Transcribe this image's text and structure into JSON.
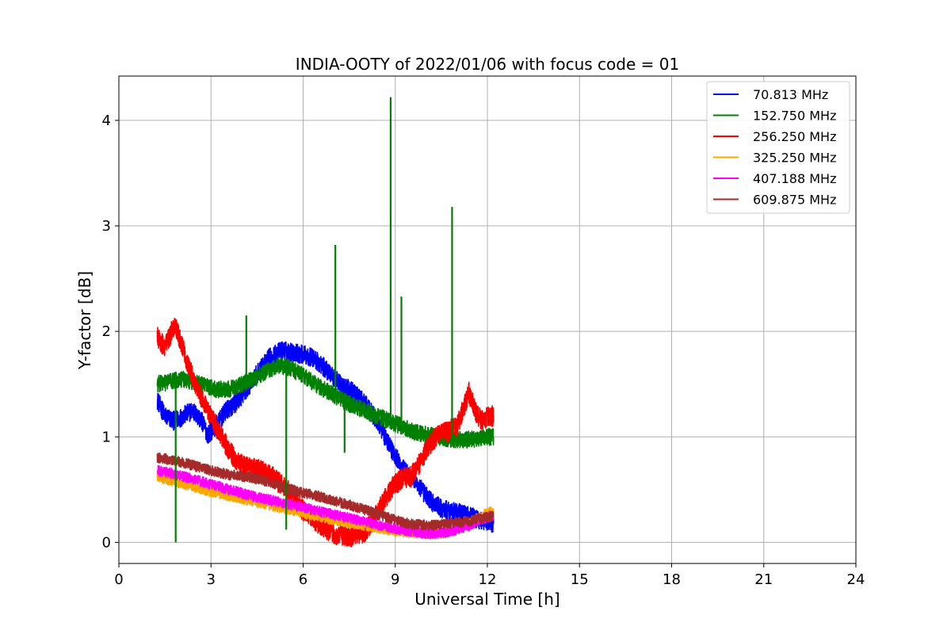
{
  "chart_data": {
    "type": "line",
    "title": "INDIA-OOTY of 2022/01/06 with focus code = 01",
    "xlabel": "Universal Time [h]",
    "ylabel": "Y-factor [dB]",
    "xlim": [
      0,
      24
    ],
    "ylim": [
      -0.2,
      4.42
    ],
    "xticks": [
      0,
      3,
      6,
      9,
      12,
      15,
      18,
      21,
      24
    ],
    "yticks": [
      0,
      1,
      2,
      3,
      4
    ],
    "grid": true,
    "legend_position": "top-right",
    "series": [
      {
        "name": " 70.813 MHz",
        "color": "#0000ff",
        "x": [
          1.25,
          1.5,
          1.8,
          2.1,
          2.4,
          2.7,
          2.9,
          3.2,
          3.5,
          3.8,
          4.1,
          4.5,
          4.9,
          5.3,
          5.7,
          6.0,
          6.3,
          6.6,
          6.9,
          7.2,
          7.5,
          7.8,
          8.1,
          8.4,
          8.7,
          9.0,
          9.3,
          9.6,
          9.9,
          10.2,
          10.5,
          10.8,
          11.1,
          11.4,
          11.7,
          12.0,
          12.2
        ],
        "y": [
          1.35,
          1.2,
          1.15,
          1.2,
          1.25,
          1.15,
          1.02,
          1.12,
          1.25,
          1.32,
          1.42,
          1.6,
          1.75,
          1.82,
          1.8,
          1.78,
          1.75,
          1.68,
          1.6,
          1.5,
          1.45,
          1.38,
          1.28,
          1.15,
          0.98,
          0.82,
          0.68,
          0.6,
          0.48,
          0.38,
          0.32,
          0.3,
          0.28,
          0.25,
          0.22,
          0.2,
          0.18
        ]
      },
      {
        "name": "152.750 MHz",
        "color": "#008000",
        "x": [
          1.25,
          1.6,
          2.0,
          2.4,
          2.8,
          3.2,
          3.6,
          4.0,
          4.4,
          4.8,
          5.2,
          5.6,
          6.0,
          6.4,
          6.8,
          7.2,
          7.6,
          8.0,
          8.4,
          8.8,
          9.2,
          9.6,
          10.0,
          10.4,
          10.8,
          11.2,
          11.6,
          12.0,
          12.2
        ],
        "y": [
          1.5,
          1.52,
          1.55,
          1.52,
          1.48,
          1.45,
          1.45,
          1.5,
          1.55,
          1.62,
          1.68,
          1.65,
          1.58,
          1.5,
          1.43,
          1.36,
          1.3,
          1.25,
          1.2,
          1.15,
          1.1,
          1.05,
          1.02,
          1.0,
          0.98,
          0.97,
          0.98,
          1.0,
          1.0
        ]
      },
      {
        "name": "256.250 MHz",
        "color": "#ff0000",
        "x": [
          1.25,
          1.5,
          1.75,
          1.85,
          2.0,
          2.3,
          2.6,
          2.9,
          3.2,
          3.5,
          3.8,
          4.1,
          4.5,
          5.0,
          5.5,
          6.0,
          6.5,
          7.0,
          7.5,
          8.0,
          8.3,
          8.6,
          8.9,
          9.2,
          9.5,
          9.8,
          10.1,
          10.4,
          10.7,
          11.0,
          11.2,
          11.4,
          11.6,
          11.8,
          12.0,
          12.2
        ],
        "y": [
          1.95,
          1.85,
          2.02,
          2.05,
          1.9,
          1.65,
          1.42,
          1.25,
          1.08,
          0.92,
          0.78,
          0.72,
          0.7,
          0.62,
          0.5,
          0.3,
          0.18,
          0.08,
          0.05,
          0.1,
          0.22,
          0.38,
          0.52,
          0.6,
          0.62,
          0.75,
          0.92,
          1.02,
          1.05,
          1.1,
          1.25,
          1.42,
          1.25,
          1.15,
          1.18,
          1.2
        ]
      },
      {
        "name": "325.250 MHz",
        "color": "#ffa500",
        "x": [
          1.25,
          1.8,
          2.4,
          3.0,
          3.6,
          4.2,
          4.8,
          5.4,
          6.0,
          6.6,
          7.2,
          7.8,
          8.4,
          9.0,
          9.6,
          10.2,
          10.8,
          11.4,
          12.0,
          12.2
        ],
        "y": [
          0.62,
          0.58,
          0.53,
          0.48,
          0.44,
          0.4,
          0.36,
          0.32,
          0.28,
          0.24,
          0.2,
          0.17,
          0.14,
          0.11,
          0.09,
          0.08,
          0.1,
          0.18,
          0.28,
          0.3
        ]
      },
      {
        "name": "407.188 MHz",
        "color": "#ff00ff",
        "x": [
          1.25,
          1.8,
          2.4,
          3.0,
          3.6,
          4.2,
          4.8,
          5.4,
          6.0,
          6.6,
          7.2,
          7.8,
          8.4,
          9.0,
          9.6,
          10.2,
          10.8,
          11.4,
          12.0,
          12.2
        ],
        "y": [
          0.68,
          0.65,
          0.6,
          0.55,
          0.5,
          0.45,
          0.41,
          0.37,
          0.33,
          0.29,
          0.25,
          0.21,
          0.17,
          0.13,
          0.1,
          0.08,
          0.1,
          0.16,
          0.24,
          0.26
        ]
      },
      {
        "name": "609.875 MHz",
        "color": "#a52a2a",
        "x": [
          1.25,
          1.8,
          2.4,
          3.0,
          3.6,
          4.2,
          4.8,
          5.4,
          6.0,
          6.6,
          7.2,
          7.8,
          8.4,
          9.0,
          9.6,
          10.2,
          10.8,
          11.4,
          12.0,
          12.2
        ],
        "y": [
          0.8,
          0.78,
          0.73,
          0.68,
          0.64,
          0.62,
          0.58,
          0.52,
          0.47,
          0.43,
          0.38,
          0.33,
          0.27,
          0.21,
          0.17,
          0.16,
          0.18,
          0.2,
          0.24,
          0.25
        ]
      }
    ],
    "annotations": [
      {
        "series": "152.750 MHz",
        "type": "spike",
        "x": 1.85,
        "y": 0.0
      },
      {
        "series": "152.750 MHz",
        "type": "spike",
        "x": 4.15,
        "y": 2.15
      },
      {
        "series": "152.750 MHz",
        "type": "spike",
        "x": 5.45,
        "y": 0.12
      },
      {
        "series": "152.750 MHz",
        "type": "spike",
        "x": 7.05,
        "y": 2.82
      },
      {
        "series": "152.750 MHz",
        "type": "spike",
        "x": 7.35,
        "y": 0.85
      },
      {
        "series": "152.750 MHz",
        "type": "spike",
        "x": 8.85,
        "y": 4.22
      },
      {
        "series": "152.750 MHz",
        "type": "spike",
        "x": 9.2,
        "y": 2.33
      },
      {
        "series": "152.750 MHz",
        "type": "spike",
        "x": 10.85,
        "y": 3.18
      }
    ]
  }
}
